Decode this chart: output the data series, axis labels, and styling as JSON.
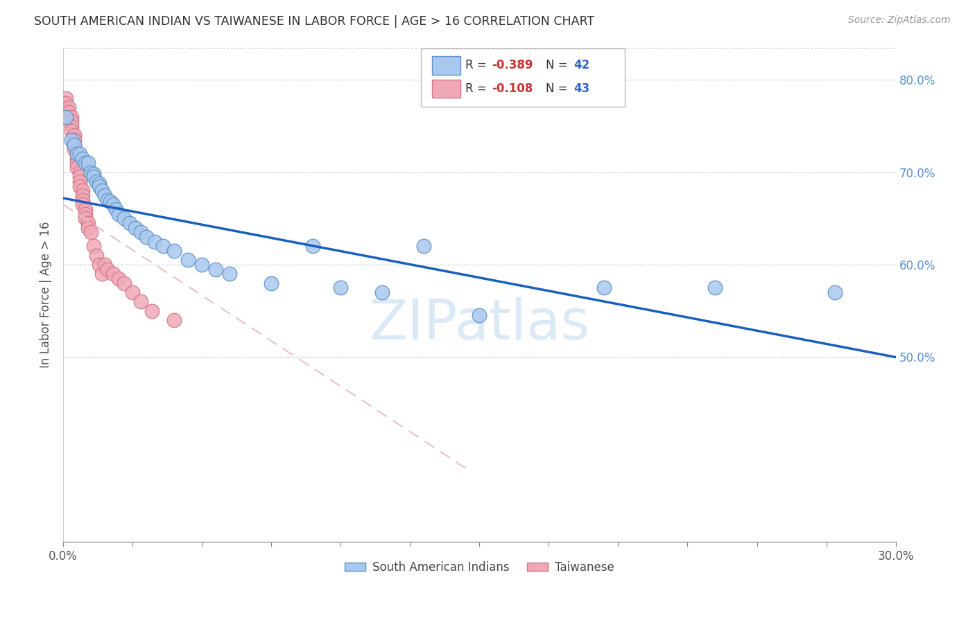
{
  "title": "SOUTH AMERICAN INDIAN VS TAIWANESE IN LABOR FORCE | AGE > 16 CORRELATION CHART",
  "source": "Source: ZipAtlas.com",
  "ylabel": "In Labor Force | Age > 16",
  "xlim": [
    0.0,
    0.3
  ],
  "ylim": [
    0.3,
    0.835
  ],
  "yticks_right": [
    0.5,
    0.6,
    0.7,
    0.8
  ],
  "ytick_labels_right": [
    "50.0%",
    "60.0%",
    "70.0%",
    "80.0%"
  ],
  "xticks": [
    0.0,
    0.025,
    0.05,
    0.075,
    0.1,
    0.125,
    0.15,
    0.175,
    0.2,
    0.225,
    0.25,
    0.275,
    0.3
  ],
  "xtick_labels_show": {
    "0.0": "0.0%",
    "0.30": "30.0%"
  },
  "blue_R": -0.389,
  "blue_N": 42,
  "pink_R": -0.108,
  "pink_N": 43,
  "blue_color": "#a8c8ee",
  "pink_color": "#f0a8b8",
  "blue_edge_color": "#6090c8",
  "pink_edge_color": "#d07888",
  "blue_line_color": "#1a5fbf",
  "pink_line_color": "#e0b0bc",
  "legend_label_blue": "South American Indians",
  "legend_label_pink": "Taiwanese",
  "watermark": "ZIPatlas",
  "watermark_color": "#cce0f5",
  "blue_scatter_x": [
    0.001,
    0.003,
    0.004,
    0.005,
    0.006,
    0.007,
    0.008,
    0.009,
    0.01,
    0.011,
    0.011,
    0.012,
    0.013,
    0.013,
    0.014,
    0.015,
    0.016,
    0.017,
    0.018,
    0.019,
    0.02,
    0.022,
    0.024,
    0.026,
    0.028,
    0.03,
    0.033,
    0.036,
    0.04,
    0.045,
    0.05,
    0.055,
    0.06,
    0.075,
    0.09,
    0.1,
    0.115,
    0.13,
    0.15,
    0.195,
    0.235,
    0.278
  ],
  "blue_scatter_y": [
    0.76,
    0.735,
    0.73,
    0.72,
    0.72,
    0.715,
    0.71,
    0.71,
    0.7,
    0.698,
    0.695,
    0.69,
    0.688,
    0.685,
    0.68,
    0.675,
    0.67,
    0.668,
    0.665,
    0.66,
    0.655,
    0.65,
    0.645,
    0.64,
    0.635,
    0.63,
    0.625,
    0.62,
    0.615,
    0.605,
    0.6,
    0.595,
    0.59,
    0.58,
    0.62,
    0.575,
    0.57,
    0.62,
    0.545,
    0.575,
    0.575,
    0.57
  ],
  "pink_scatter_x": [
    0.001,
    0.001,
    0.002,
    0.002,
    0.003,
    0.003,
    0.003,
    0.003,
    0.004,
    0.004,
    0.004,
    0.004,
    0.005,
    0.005,
    0.005,
    0.005,
    0.006,
    0.006,
    0.006,
    0.006,
    0.007,
    0.007,
    0.007,
    0.007,
    0.008,
    0.008,
    0.008,
    0.009,
    0.009,
    0.01,
    0.011,
    0.012,
    0.013,
    0.014,
    0.015,
    0.016,
    0.018,
    0.02,
    0.022,
    0.025,
    0.028,
    0.032,
    0.04
  ],
  "pink_scatter_y": [
    0.78,
    0.775,
    0.77,
    0.765,
    0.76,
    0.755,
    0.75,
    0.745,
    0.74,
    0.735,
    0.73,
    0.725,
    0.72,
    0.715,
    0.71,
    0.705,
    0.7,
    0.695,
    0.69,
    0.685,
    0.68,
    0.675,
    0.67,
    0.665,
    0.66,
    0.655,
    0.65,
    0.645,
    0.64,
    0.635,
    0.62,
    0.61,
    0.6,
    0.59,
    0.6,
    0.595,
    0.59,
    0.585,
    0.58,
    0.57,
    0.56,
    0.55,
    0.54
  ],
  "blue_line_x": [
    0.0,
    0.3
  ],
  "blue_line_y": [
    0.672,
    0.5
  ],
  "pink_line_x": [
    0.0,
    0.145
  ],
  "pink_line_y": [
    0.665,
    0.38
  ]
}
